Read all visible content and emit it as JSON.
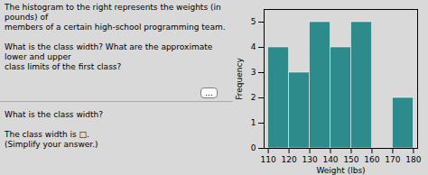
{
  "chart_data": {
    "type": "histogram",
    "title": "The histogram to the right represents the weights (in pounds) of\nmembers of a certain high-school programming team.\n\nWhat is the class width? What are the approximate lower and upper\nclass limits of the first class?",
    "annotations": [
      "What is the class width?",
      "The class width is □.",
      "(Simplify your answer.)",
      "..."
    ],
    "bins": [
      110,
      120,
      130,
      140,
      150,
      160,
      170,
      180
    ],
    "values": [
      4,
      3,
      5,
      4,
      5,
      0,
      2
    ],
    "color": "#2e8b8b",
    "xlabel": "Weight (lbs)",
    "ylabel": "Frequency",
    "xlim": [
      108,
      182
    ],
    "xticks": [
      110,
      120,
      130,
      140,
      150,
      160,
      170,
      180
    ],
    "ylim": [
      0,
      5.5
    ],
    "yticks": [
      0,
      1,
      2,
      3,
      4,
      5
    ],
    "grid": false
  }
}
